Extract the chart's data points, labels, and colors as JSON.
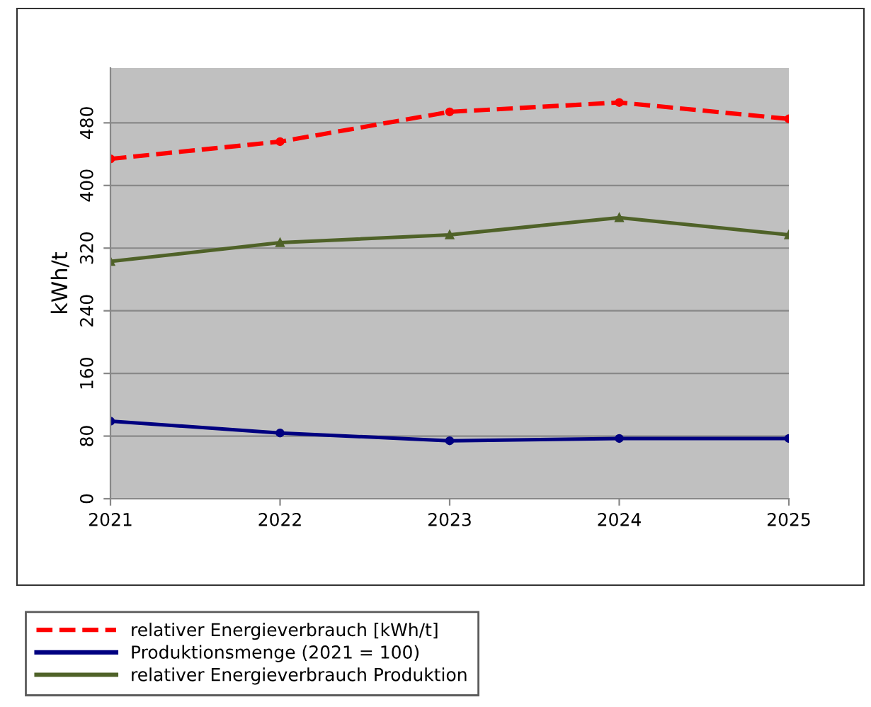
{
  "chart_data": {
    "type": "line",
    "ylabel": "kWh/t",
    "x": [
      2021,
      2022,
      2023,
      2024,
      2025
    ],
    "xlim": [
      2021,
      2025
    ],
    "xticks": [
      2021,
      2022,
      2023,
      2024,
      2025
    ],
    "ylim": [
      0,
      550
    ],
    "yticks": [
      0,
      80,
      160,
      240,
      320,
      400,
      480
    ],
    "grid": "y",
    "legend": "bottom",
    "series": [
      {
        "name": "relativer Energieverbrauch [kWh/t]",
        "color": "#ff0000",
        "line_style": "dashed",
        "marker": "circle",
        "values": [
          434,
          456,
          494,
          506,
          485
        ]
      },
      {
        "name": "Produktionsmenge (2021 = 100)",
        "color": "#000080",
        "line_style": "solid",
        "marker": "circle",
        "values": [
          99,
          84,
          74,
          77,
          77
        ]
      },
      {
        "name": "relativer Energieverbrauch Produktion",
        "color": "#4f6228",
        "line_style": "solid",
        "marker": "triangle",
        "values": [
          303,
          327,
          337,
          359,
          337
        ]
      }
    ]
  }
}
